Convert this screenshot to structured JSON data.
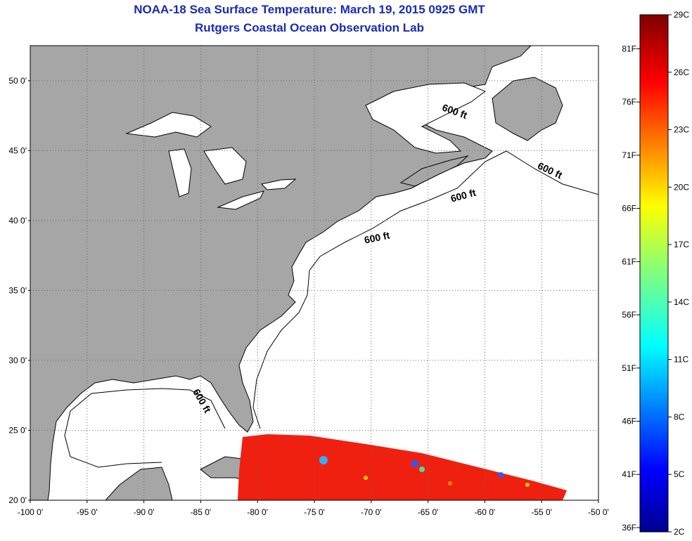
{
  "header": {
    "title": "NOAA-18 Sea Surface Temperature:  March 19, 2015 0925 GMT",
    "subtitle": "Rutgers Coastal Ocean Observation Lab"
  },
  "map": {
    "lat_labels": [
      "50 0'",
      "45 0'",
      "40 0'",
      "35 0'",
      "30 0'",
      "25 0'",
      "20 0'"
    ],
    "lon_labels": [
      "-100 0'",
      "-95 0'",
      "-90 0'",
      "-85 0'",
      "-80 0'",
      "-75 0'",
      "-70 0'",
      "-65 0'",
      "-60 0'",
      "-55 0'",
      "-50 0'"
    ],
    "lat_range": [
      20,
      52.5
    ],
    "lon_range": [
      -100,
      -50
    ],
    "contour_label": "600 ft",
    "contour_label_count": 5,
    "colors": {
      "land": "#a6a6a6",
      "ocean": "#ffffff",
      "swath_warm": "#f02010"
    }
  },
  "colorbar": {
    "celsius_labels": [
      "29C",
      "26C",
      "23C",
      "20C",
      "17C",
      "14C",
      "11C",
      "8C",
      "5C",
      "2C"
    ],
    "fahrenheit_labels": [
      "81F",
      "76F",
      "71F",
      "66F",
      "61F",
      "56F",
      "51F",
      "46F",
      "41F",
      "36F"
    ],
    "celsius_range": [
      2,
      29
    ],
    "fahrenheit_range": [
      36,
      84
    ]
  }
}
